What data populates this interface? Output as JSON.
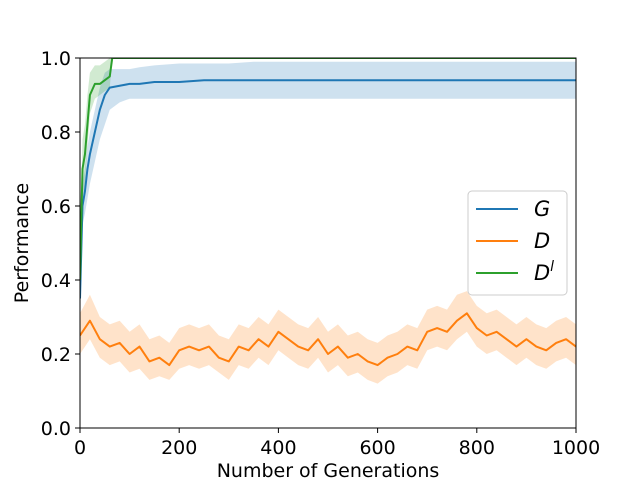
{
  "chart_data": {
    "type": "line",
    "title": "",
    "xlabel": "Number of Generations",
    "ylabel": "Performance",
    "xlim": [
      0,
      1000
    ],
    "ylim": [
      0.0,
      1.0
    ],
    "xticks": [
      "0",
      "200",
      "400",
      "600",
      "800",
      "1000"
    ],
    "yticks": [
      "0.0",
      "0.2",
      "0.4",
      "0.6",
      "0.8",
      "1.0"
    ],
    "grid": false,
    "legend_position": "center-right",
    "series": [
      {
        "name": "G",
        "label_base": "G",
        "label_sup": "",
        "color": "#1f77b4",
        "x": [
          0,
          5,
          10,
          15,
          20,
          30,
          40,
          50,
          60,
          80,
          100,
          120,
          150,
          200,
          250,
          300,
          350,
          400,
          450,
          500,
          550,
          600,
          650,
          680,
          700,
          800,
          900,
          1000
        ],
        "y": [
          0.35,
          0.6,
          0.64,
          0.7,
          0.74,
          0.8,
          0.86,
          0.9,
          0.92,
          0.925,
          0.93,
          0.93,
          0.935,
          0.935,
          0.94,
          0.94,
          0.94,
          0.94,
          0.94,
          0.94,
          0.94,
          0.94,
          0.94,
          0.94,
          0.94,
          0.94,
          0.94,
          0.94
        ],
        "lower": [
          0.3,
          0.55,
          0.58,
          0.62,
          0.66,
          0.72,
          0.78,
          0.82,
          0.86,
          0.88,
          0.89,
          0.89,
          0.89,
          0.89,
          0.89,
          0.89,
          0.89,
          0.89,
          0.89,
          0.89,
          0.89,
          0.89,
          0.89,
          0.89,
          0.89,
          0.89,
          0.89,
          0.89
        ],
        "upper": [
          0.42,
          0.66,
          0.7,
          0.76,
          0.8,
          0.86,
          0.92,
          0.96,
          0.97,
          0.97,
          0.97,
          0.975,
          0.98,
          0.985,
          0.985,
          0.985,
          0.99,
          0.99,
          0.99,
          0.99,
          0.99,
          0.99,
          0.99,
          0.99,
          0.99,
          0.99,
          0.99,
          0.99
        ]
      },
      {
        "name": "D",
        "label_base": "D",
        "label_sup": "",
        "color": "#ff7f0e",
        "x": [
          0,
          20,
          40,
          60,
          80,
          100,
          120,
          140,
          160,
          180,
          200,
          220,
          240,
          260,
          280,
          300,
          320,
          340,
          360,
          380,
          400,
          420,
          440,
          460,
          480,
          500,
          520,
          540,
          560,
          580,
          600,
          620,
          640,
          660,
          680,
          700,
          720,
          740,
          760,
          780,
          800,
          820,
          840,
          860,
          880,
          900,
          920,
          940,
          960,
          980,
          1000
        ],
        "y": [
          0.25,
          0.29,
          0.24,
          0.22,
          0.23,
          0.2,
          0.22,
          0.18,
          0.19,
          0.17,
          0.21,
          0.22,
          0.21,
          0.22,
          0.19,
          0.18,
          0.22,
          0.21,
          0.24,
          0.22,
          0.26,
          0.24,
          0.22,
          0.21,
          0.24,
          0.2,
          0.22,
          0.19,
          0.2,
          0.18,
          0.17,
          0.19,
          0.2,
          0.22,
          0.21,
          0.26,
          0.27,
          0.26,
          0.29,
          0.31,
          0.27,
          0.25,
          0.26,
          0.24,
          0.22,
          0.24,
          0.22,
          0.21,
          0.23,
          0.24,
          0.22
        ],
        "lower": [
          0.2,
          0.24,
          0.19,
          0.17,
          0.18,
          0.15,
          0.16,
          0.13,
          0.14,
          0.13,
          0.16,
          0.17,
          0.16,
          0.17,
          0.15,
          0.13,
          0.17,
          0.16,
          0.19,
          0.17,
          0.21,
          0.19,
          0.17,
          0.16,
          0.19,
          0.15,
          0.17,
          0.14,
          0.15,
          0.13,
          0.12,
          0.14,
          0.15,
          0.17,
          0.16,
          0.21,
          0.22,
          0.21,
          0.24,
          0.26,
          0.22,
          0.2,
          0.21,
          0.19,
          0.17,
          0.19,
          0.17,
          0.16,
          0.18,
          0.19,
          0.17
        ],
        "upper": [
          0.31,
          0.36,
          0.3,
          0.28,
          0.29,
          0.26,
          0.28,
          0.24,
          0.25,
          0.23,
          0.27,
          0.28,
          0.27,
          0.28,
          0.25,
          0.24,
          0.28,
          0.27,
          0.3,
          0.28,
          0.32,
          0.3,
          0.28,
          0.27,
          0.3,
          0.26,
          0.28,
          0.25,
          0.26,
          0.24,
          0.23,
          0.25,
          0.26,
          0.28,
          0.27,
          0.32,
          0.33,
          0.32,
          0.36,
          0.37,
          0.33,
          0.31,
          0.32,
          0.3,
          0.28,
          0.3,
          0.28,
          0.27,
          0.29,
          0.3,
          0.28
        ]
      },
      {
        "name": "D^l",
        "label_base": "D",
        "label_sup": "l",
        "color": "#2ca02c",
        "x": [
          0,
          5,
          10,
          15,
          20,
          30,
          40,
          50,
          60,
          65,
          100,
          200,
          400,
          600,
          800,
          1000
        ],
        "y": [
          0.4,
          0.7,
          0.74,
          0.82,
          0.9,
          0.93,
          0.93,
          0.94,
          0.95,
          1.0,
          1.0,
          1.0,
          1.0,
          1.0,
          1.0,
          1.0
        ],
        "lower": [
          0.35,
          0.62,
          0.66,
          0.76,
          0.85,
          0.89,
          0.9,
          0.91,
          0.92,
          1.0,
          1.0,
          1.0,
          1.0,
          1.0,
          1.0,
          1.0
        ],
        "upper": [
          0.45,
          0.78,
          0.82,
          0.9,
          0.96,
          0.98,
          0.98,
          0.99,
          1.0,
          1.0,
          1.0,
          1.0,
          1.0,
          1.0,
          1.0,
          1.0
        ]
      }
    ]
  }
}
